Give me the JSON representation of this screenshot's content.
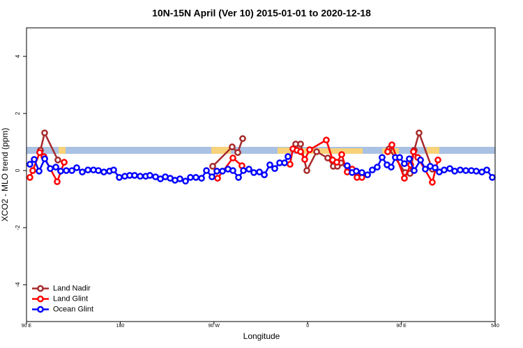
{
  "chart_data": {
    "type": "line",
    "title": "10N-15N April (Ver 10)   2015-01-01 to 2020-12-18",
    "xlabel": "Longitude",
    "ylabel": "XCO2 - MLO trend (ppm)",
    "xlim": [
      90,
      540
    ],
    "ylim": [
      -5.29,
      5.0
    ],
    "xticks": [
      {
        "value": 90,
        "label": "90 E"
      },
      180,
      {
        "value": 270,
        "label": "90 W"
      },
      {
        "value": 360,
        "label": "0"
      },
      {
        "value": 450,
        "label": "90 E"
      },
      540
    ],
    "yticks": [
      -4,
      -2,
      0,
      2,
      4
    ],
    "legend": "bottomleft",
    "series": [
      {
        "name": "Land Nadir",
        "color": "#a52a2a",
        "x": [
          103.4,
          107.4,
          120.1,
          null,
          268.8,
          287.5,
          292.9,
          297.6,
          null,
          348.5,
          353.2,
          359.2,
          368.6,
          379.3,
          384.6,
          388.6,
          392,
          398.7,
          408,
          null,
          438.2,
          453.6,
          458.3,
          462.3,
          467,
          479.7
        ],
        "values": [
          0.71,
          1.32,
          0.37,
          null,
          0.15,
          0.83,
          0.63,
          1.12,
          null,
          0.93,
          0.93,
          0.0,
          0.66,
          0.44,
          0.15,
          0.15,
          0.27,
          0.02,
          -0.22,
          null,
          0.76,
          -0.07,
          -0.1,
          0.71,
          1.32,
          0.05
        ]
      },
      {
        "name": "Land Glint",
        "color": "#ff0000",
        "x": [
          93.3,
          96,
          102.7,
          106.7,
          119.5,
          126.2,
          null,
          273.5,
          288.2,
          296.9,
          null,
          343.1,
          345.8,
          349.8,
          353.2,
          357.2,
          361.9,
          377.9,
          384,
          388,
          392.7,
          398,
          402.7,
          407.4,
          412.1,
          null,
          436.9,
          440.9,
          452.9,
          458.9,
          461.6,
          465.7,
          479.7,
          485.1
        ],
        "values": [
          -0.24,
          0.0,
          0.63,
          0.49,
          -0.39,
          0.29,
          null,
          -0.27,
          0.44,
          0.17,
          null,
          0.22,
          0.76,
          0.71,
          0.66,
          0.39,
          0.73,
          1.07,
          0.37,
          0.29,
          0.56,
          -0.05,
          0.05,
          -0.24,
          -0.24,
          null,
          0.66,
          0.9,
          -0.27,
          0.2,
          0.66,
          0.46,
          -0.41,
          0.37
        ]
      },
      {
        "name": "Ocean Glint",
        "color": "#0000ff",
        "x": [
          93.3,
          97.4,
          102.1,
          107.5,
          112.8,
          118.2,
          122.8,
          128.2,
          133.6,
          138.2,
          143.6,
          149,
          154.3,
          159,
          164.3,
          169.7,
          173.7,
          179.1,
          184.4,
          189.1,
          193.8,
          199.2,
          204.5,
          208.5,
          213.9,
          218.6,
          223.3,
          228,
          232.6,
          237.3,
          242.7,
          247.4,
          252.7,
          258.1,
          262.8,
          268.1,
          272.8,
          278.2,
          283.5,
          288.2,
          293.6,
          298.3,
          303.6,
          308.3,
          313.7,
          318.4,
          323.7,
          328.4,
          333.1,
          337.8,
          341.1,
          null,
          398,
          402.7,
          406.7,
          412.1,
          417.5,
          422.1,
          426.8,
          431.5,
          436.2,
          440.2,
          444.2,
          448.3,
          452.9,
          457.6,
          462.3,
          468.4,
          473,
          477.7,
          482.4,
          486.4,
          491.1,
          496.5,
          501.2,
          506.5,
          511.9,
          517.2,
          521.9,
          527.3,
          532,
          537.3
        ],
        "values": [
          0.22,
          0.39,
          -0.02,
          0.41,
          0.07,
          0.12,
          -0.02,
          0.0,
          0.0,
          0.1,
          -0.05,
          0.02,
          0.02,
          0.0,
          -0.05,
          -0.02,
          0.02,
          -0.24,
          -0.2,
          -0.17,
          -0.17,
          -0.2,
          -0.2,
          -0.17,
          -0.22,
          -0.29,
          -0.22,
          -0.27,
          -0.34,
          -0.29,
          -0.37,
          -0.24,
          -0.24,
          -0.27,
          0.0,
          -0.22,
          -0.02,
          -0.02,
          0.05,
          0.0,
          -0.24,
          0.0,
          0.05,
          -0.07,
          -0.05,
          -0.15,
          0.2,
          0.07,
          0.27,
          0.27,
          0.49,
          null,
          0.17,
          -0.07,
          -0.02,
          -0.07,
          -0.15,
          0.02,
          0.12,
          0.46,
          0.2,
          0.12,
          0.46,
          0.46,
          0.24,
          0.41,
          0.0,
          0.37,
          0.05,
          0.15,
          0.1,
          -0.05,
          0.02,
          0.07,
          -0.02,
          0.02,
          0.0,
          0.0,
          -0.02,
          -0.05,
          0.02,
          -0.24
        ]
      }
    ]
  }
}
